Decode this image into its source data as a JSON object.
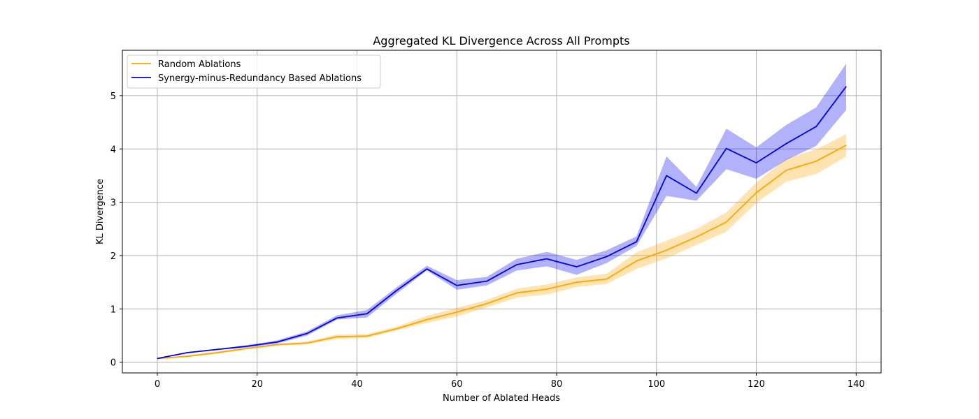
{
  "chart_data": {
    "type": "line",
    "title": "Aggregated KL Divergence Across All Prompts",
    "xlabel": "Number of Ablated Heads",
    "ylabel": "KL Divergence",
    "xlim": [
      -7,
      145
    ],
    "ylim": [
      -0.2,
      5.85
    ],
    "xticks": [
      0,
      20,
      40,
      60,
      80,
      100,
      120,
      140
    ],
    "yticks": [
      0,
      1,
      2,
      3,
      4,
      5
    ],
    "grid": true,
    "legend_position": "top-left",
    "x": [
      0,
      6,
      12,
      18,
      24,
      30,
      36,
      42,
      48,
      54,
      60,
      66,
      72,
      78,
      84,
      90,
      96,
      102,
      108,
      114,
      120,
      126,
      132,
      138
    ],
    "series": [
      {
        "name": "Random Ablations",
        "color": "#ffa500",
        "values": [
          0.07,
          0.11,
          0.18,
          0.26,
          0.33,
          0.36,
          0.48,
          0.49,
          0.63,
          0.8,
          0.94,
          1.1,
          1.3,
          1.37,
          1.5,
          1.56,
          1.9,
          2.1,
          2.35,
          2.63,
          3.18,
          3.6,
          3.77,
          4.07
        ],
        "lower": [
          0.06,
          0.1,
          0.16,
          0.24,
          0.31,
          0.34,
          0.44,
          0.46,
          0.6,
          0.74,
          0.86,
          1.03,
          1.21,
          1.27,
          1.41,
          1.47,
          1.75,
          1.95,
          2.2,
          2.45,
          2.99,
          3.39,
          3.53,
          3.86
        ],
        "upper": [
          0.08,
          0.13,
          0.2,
          0.28,
          0.35,
          0.39,
          0.52,
          0.53,
          0.67,
          0.87,
          1.02,
          1.17,
          1.38,
          1.46,
          1.59,
          1.66,
          2.06,
          2.28,
          2.5,
          2.81,
          3.37,
          3.82,
          3.99,
          4.28
        ]
      },
      {
        "name": "Synergy-minus-Redundancy Based Ablations",
        "color": "#0000ee",
        "values": [
          0.07,
          0.18,
          0.24,
          0.3,
          0.38,
          0.54,
          0.83,
          0.91,
          1.35,
          1.75,
          1.44,
          1.52,
          1.83,
          1.94,
          1.79,
          1.98,
          2.26,
          3.5,
          3.17,
          4.01,
          3.74,
          4.1,
          4.42,
          5.17
        ],
        "lower": [
          0.06,
          0.17,
          0.23,
          0.28,
          0.35,
          0.5,
          0.8,
          0.84,
          1.29,
          1.72,
          1.36,
          1.44,
          1.72,
          1.8,
          1.64,
          1.86,
          2.18,
          3.12,
          3.03,
          3.62,
          3.44,
          3.79,
          4.06,
          4.73
        ],
        "upper": [
          0.08,
          0.19,
          0.25,
          0.32,
          0.41,
          0.58,
          0.88,
          0.98,
          1.41,
          1.81,
          1.54,
          1.6,
          1.94,
          2.07,
          1.92,
          2.1,
          2.36,
          3.86,
          3.29,
          4.38,
          4.03,
          4.45,
          4.78,
          5.6
        ]
      }
    ]
  }
}
